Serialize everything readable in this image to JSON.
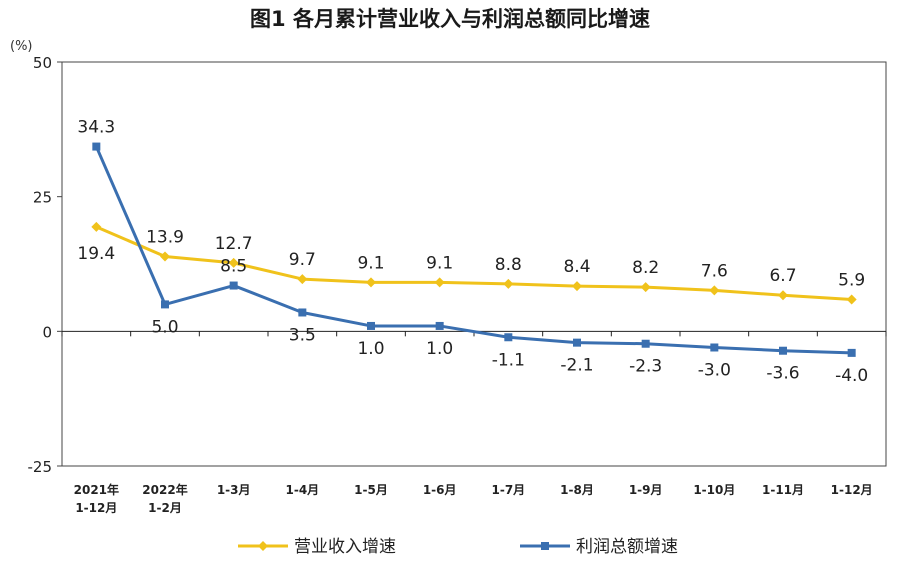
{
  "chart_data": {
    "type": "line",
    "title": "图1  各月累计营业收入与利润总额同比增速",
    "unit_label": "(%)",
    "ylim": [
      -25,
      50
    ],
    "yticks": [
      -25,
      0,
      25,
      50
    ],
    "categories": [
      [
        "2021年",
        "1-12月"
      ],
      [
        "2022年",
        "1-2月"
      ],
      [
        "1-3月"
      ],
      [
        "1-4月"
      ],
      [
        "1-5月"
      ],
      [
        "1-6月"
      ],
      [
        "1-7月"
      ],
      [
        "1-8月"
      ],
      [
        "1-9月"
      ],
      [
        "1-10月"
      ],
      [
        "1-11月"
      ],
      [
        "1-12月"
      ]
    ],
    "series": [
      {
        "name": "营业收入增速",
        "color": "#f0c21b",
        "marker": "diamond",
        "values": [
          19.4,
          13.9,
          12.7,
          9.7,
          9.1,
          9.1,
          8.8,
          8.4,
          8.2,
          7.6,
          6.7,
          5.9
        ],
        "labels": [
          "19.4",
          "13.9",
          "12.7",
          "9.7",
          "9.1",
          "9.1",
          "8.8",
          "8.4",
          "8.2",
          "7.6",
          "6.7",
          "5.9"
        ]
      },
      {
        "name": "利润总额增速",
        "color": "#3a6fb0",
        "marker": "square",
        "values": [
          34.3,
          5.0,
          8.5,
          3.5,
          1.0,
          1.0,
          -1.1,
          -2.1,
          -2.3,
          -3.0,
          -3.6,
          -4.0
        ],
        "labels": [
          "34.3",
          "5.0",
          "8.5",
          "3.5",
          "1.0",
          "1.0",
          "-1.1",
          "-2.1",
          "-2.3",
          "-3.0",
          "-3.6",
          "-4.0"
        ]
      }
    ],
    "grid": false,
    "legend_position": "bottom"
  }
}
